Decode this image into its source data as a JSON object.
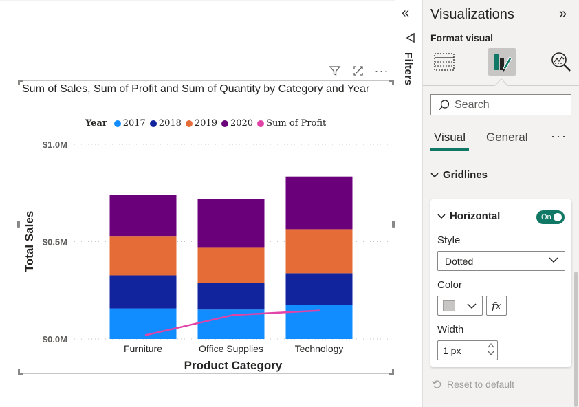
{
  "chart_data": {
    "type": "bar",
    "stacked": true,
    "title": "Sum of Sales, Sum of Profit and Sum of Quantity by Category and Year",
    "xlabel": "Product Category",
    "ylabel": "Total Sales",
    "categories": [
      "Furniture",
      "Office Supplies",
      "Technology"
    ],
    "ylim": [
      0,
      1.0
    ],
    "yticks": [
      {
        "value": 0.0,
        "label": "$0.0M"
      },
      {
        "value": 0.5,
        "label": "$0.5M"
      },
      {
        "value": 1.0,
        "label": "$1.0M"
      }
    ],
    "grid": "horizontal-dotted",
    "legend_placement": "top",
    "legend_title": "Year",
    "series": [
      {
        "name": "2017",
        "color": "#118dff",
        "values": [
          0.157,
          0.151,
          0.176
        ]
      },
      {
        "name": "2018",
        "color": "#12239e",
        "values": [
          0.17,
          0.138,
          0.162
        ]
      },
      {
        "name": "2019",
        "color": "#e66c37",
        "values": [
          0.199,
          0.183,
          0.226
        ]
      },
      {
        "name": "2020",
        "color": "#6b007b",
        "values": [
          0.215,
          0.247,
          0.271
        ]
      }
    ],
    "line_series": [
      {
        "name": "Sum of Profit",
        "color": "#e044a7",
        "values": [
          0.019,
          0.123,
          0.146
        ]
      }
    ]
  },
  "visual_header": {
    "filter_icon": "funnel-icon",
    "focus_icon": "focus-mode-icon",
    "more_icon": "more-options-icon",
    "more_label": "···"
  },
  "filters": {
    "label": "Filters",
    "collapse_glyph": "«"
  },
  "pane": {
    "title": "Visualizations",
    "expand_glyph": "»",
    "subtitle": "Format visual",
    "search_placeholder": "Search",
    "tabs": [
      {
        "label": "Visual",
        "active": true
      },
      {
        "label": "General",
        "active": false
      }
    ],
    "tabs_more": "···",
    "section": "Gridlines",
    "card": {
      "title": "Horizontal",
      "toggle_label": "On",
      "style_label": "Style",
      "style_value": "Dotted",
      "color_label": "Color",
      "swatch_color": "#c8c6c4",
      "fx_label": "fx",
      "width_label": "Width",
      "width_value": "1 px"
    },
    "reset_label": "Reset to default"
  },
  "colors": {
    "accent": "#117865",
    "profit_line": "#e044a7"
  }
}
